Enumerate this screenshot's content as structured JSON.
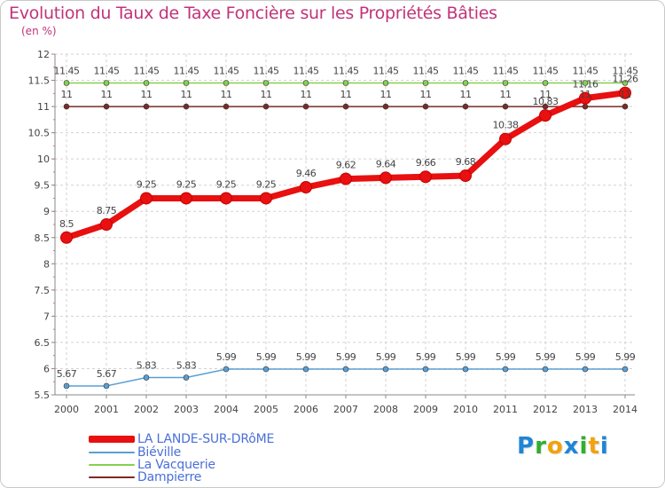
{
  "header": {
    "title": "Evolution du Taux de Taxe Foncière sur les Propriétés Bâties",
    "subtitle": "(en %)"
  },
  "logo": {
    "text": "Proxiti",
    "letters": [
      "P",
      "r",
      "o",
      "x",
      "i",
      "t",
      "i"
    ]
  },
  "chart_data": {
    "type": "line",
    "title": "Evolution du Taux de Taxe Foncière sur les Propriétés Bâties",
    "ylabel": "(en %)",
    "xlabel": "",
    "ylim": [
      5.5,
      12
    ],
    "yticks": [
      "5.5",
      "6",
      "6.5",
      "7",
      "7.5",
      "8",
      "8.5",
      "9",
      "9.5",
      "10",
      "10.5",
      "11",
      "11.5",
      "12"
    ],
    "categories": [
      "2000",
      "2001",
      "2002",
      "2003",
      "2004",
      "2005",
      "2006",
      "2007",
      "2008",
      "2009",
      "2010",
      "2011",
      "2012",
      "2013",
      "2014"
    ],
    "grid": "dashed",
    "legend_position": "bottom-left",
    "series": [
      {
        "name": "La Vacquerie",
        "color": "#86cf50",
        "values": [
          11.45,
          11.45,
          11.45,
          11.45,
          11.45,
          11.45,
          11.45,
          11.45,
          11.45,
          11.45,
          11.45,
          11.45,
          11.45,
          11.45,
          11.45
        ],
        "labels": [
          "11.45",
          "11.45",
          "11.45",
          "11.45",
          "11.45",
          "11.45",
          "11.45",
          "11.45",
          "11.45",
          "11.45",
          "11.45",
          "11.45",
          "11.45",
          "11.45",
          "11.45"
        ]
      },
      {
        "name": "Dampierre",
        "color": "#7a2a2a",
        "values": [
          11,
          11,
          11,
          11,
          11,
          11,
          11,
          11,
          11,
          11,
          11,
          11,
          11,
          11,
          11
        ],
        "labels": [
          "11",
          "11",
          "11",
          "11",
          "11",
          "11",
          "11",
          "11",
          "11",
          "11",
          "11",
          "11",
          "11",
          "11",
          "11"
        ]
      },
      {
        "name": "Biéville",
        "color": "#5a9fd4",
        "values": [
          5.67,
          5.67,
          5.83,
          5.83,
          5.99,
          5.99,
          5.99,
          5.99,
          5.99,
          5.99,
          5.99,
          5.99,
          5.99,
          5.99,
          5.99
        ],
        "labels": [
          "5.67",
          "5.67",
          "5.83",
          "5.83",
          "5.99",
          "5.99",
          "5.99",
          "5.99",
          "5.99",
          "5.99",
          "5.99",
          "5.99",
          "5.99",
          "5.99",
          "5.99"
        ]
      },
      {
        "name": "LA LANDE-SUR-DRôME",
        "color": "#e81010",
        "values": [
          8.5,
          8.75,
          9.25,
          9.25,
          9.25,
          9.25,
          9.46,
          9.62,
          9.64,
          9.66,
          9.68,
          10.38,
          10.83,
          11.16,
          11.26
        ],
        "labels": [
          "8.5",
          "8.75",
          "9.25",
          "9.25",
          "9.25",
          "9.25",
          "9.46",
          "9.62",
          "9.64",
          "9.66",
          "9.68",
          "10.38",
          "10.83",
          "11.16",
          "11.26"
        ]
      }
    ],
    "legend": [
      {
        "name": "LA LANDE-SUR-DRôME",
        "color": "#e81010",
        "thickness": "thick"
      },
      {
        "name": "Biéville",
        "color": "#5a9fd4",
        "thickness": "thin"
      },
      {
        "name": "La Vacquerie",
        "color": "#86cf50",
        "thickness": "thin"
      },
      {
        "name": "Dampierre",
        "color": "#7a2a2a",
        "thickness": "thin"
      }
    ]
  }
}
